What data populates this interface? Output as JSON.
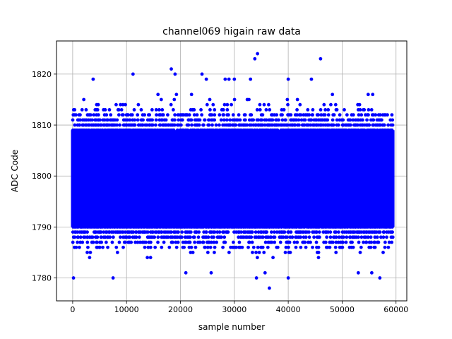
{
  "chart_data": {
    "type": "scatter",
    "title": "channel069 higain raw data",
    "xlabel": "sample number",
    "ylabel": "ADC Code",
    "xlim": [
      -3000,
      62000
    ],
    "ylim": [
      1775.5,
      1826.5
    ],
    "xticks": [
      0,
      10000,
      20000,
      30000,
      40000,
      50000,
      60000
    ],
    "yticks": [
      1780,
      1790,
      1800,
      1810,
      1820
    ],
    "grid": true,
    "marker_color": "#0000ff",
    "n_samples": 59400,
    "core_band": [
      1786,
      1812
    ],
    "dense_band": [
      1790,
      1809
    ],
    "outliers": [
      {
        "x": 150,
        "y": 1780
      },
      {
        "x": 7500,
        "y": 1780
      },
      {
        "x": 11200,
        "y": 1820
      },
      {
        "x": 18300,
        "y": 1821
      },
      {
        "x": 19000,
        "y": 1820
      },
      {
        "x": 21000,
        "y": 1781
      },
      {
        "x": 24000,
        "y": 1820
      },
      {
        "x": 24800,
        "y": 1819
      },
      {
        "x": 25700,
        "y": 1781
      },
      {
        "x": 28300,
        "y": 1819
      },
      {
        "x": 29000,
        "y": 1819
      },
      {
        "x": 30000,
        "y": 1819
      },
      {
        "x": 33000,
        "y": 1819
      },
      {
        "x": 33800,
        "y": 1823
      },
      {
        "x": 34300,
        "y": 1824
      },
      {
        "x": 34100,
        "y": 1780
      },
      {
        "x": 35700,
        "y": 1781
      },
      {
        "x": 36500,
        "y": 1778
      },
      {
        "x": 40000,
        "y": 1819
      },
      {
        "x": 40000,
        "y": 1780
      },
      {
        "x": 44300,
        "y": 1819
      },
      {
        "x": 46000,
        "y": 1823
      },
      {
        "x": 53000,
        "y": 1781
      },
      {
        "x": 55500,
        "y": 1781
      },
      {
        "x": 57000,
        "y": 1780
      },
      {
        "x": 3800,
        "y": 1819
      }
    ]
  }
}
